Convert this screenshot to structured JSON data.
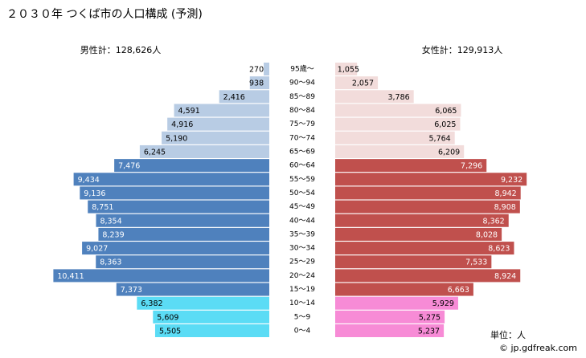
{
  "chart_data": {
    "type": "pyramid",
    "title": "２０３０年 つくば市の人口構成 (予測)",
    "categories": [
      "95歳～",
      "90～94",
      "85～89",
      "80～84",
      "75～79",
      "70～74",
      "65～69",
      "60～64",
      "55～59",
      "50～54",
      "45～49",
      "40～44",
      "35～39",
      "30～34",
      "25～29",
      "20～24",
      "15～19",
      "10～14",
      "5～9",
      "0～4"
    ],
    "series": [
      {
        "name": "男性計：128,626人",
        "side": "left",
        "values": [
          270,
          938,
          2416,
          4591,
          4916,
          5190,
          6245,
          7476,
          9434,
          9136,
          8751,
          8354,
          8239,
          9027,
          8363,
          10411,
          7373,
          6382,
          5609,
          5505
        ],
        "value_labels": [
          "270",
          "938",
          "2,416",
          "4,591",
          "4,916",
          "5,190",
          "6,245",
          "7,476",
          "9,434",
          "9,136",
          "8,751",
          "8,354",
          "8,239",
          "9,027",
          "8,363",
          "10,411",
          "7,373",
          "6,382",
          "5,609",
          "5,505"
        ],
        "colors": [
          "#b8cce4",
          "#b8cce4",
          "#b8cce4",
          "#b8cce4",
          "#b8cce4",
          "#b8cce4",
          "#b8cce4",
          "#4f81bd",
          "#4f81bd",
          "#4f81bd",
          "#4f81bd",
          "#4f81bd",
          "#4f81bd",
          "#4f81bd",
          "#4f81bd",
          "#4f81bd",
          "#4f81bd",
          "#5bdcf5",
          "#5bdcf5",
          "#5bdcf5"
        ]
      },
      {
        "name": "女性計：129,913人",
        "side": "right",
        "values": [
          1055,
          2057,
          3786,
          6065,
          6025,
          5764,
          6209,
          7296,
          9232,
          8942,
          8908,
          8362,
          8028,
          8623,
          7533,
          8924,
          6663,
          5929,
          5275,
          5237
        ],
        "value_labels": [
          "1,055",
          "2,057",
          "3,786",
          "6,065",
          "6,025",
          "5,764",
          "6,209",
          "7,296",
          "9,232",
          "8,942",
          "8,908",
          "8,362",
          "8,028",
          "8,623",
          "7,533",
          "8,924",
          "6,663",
          "5,929",
          "5,275",
          "5,237"
        ],
        "colors": [
          "#f2dcdb",
          "#f2dcdb",
          "#f2dcdb",
          "#f2dcdb",
          "#f2dcdb",
          "#f2dcdb",
          "#f2dcdb",
          "#c0504d",
          "#c0504d",
          "#c0504d",
          "#c0504d",
          "#c0504d",
          "#c0504d",
          "#c0504d",
          "#c0504d",
          "#c0504d",
          "#c0504d",
          "#f78bd6",
          "#f78bd6",
          "#f78bd6"
        ]
      }
    ],
    "unit_note": "単位：人",
    "credit": "© jp.gdfreak.com"
  }
}
